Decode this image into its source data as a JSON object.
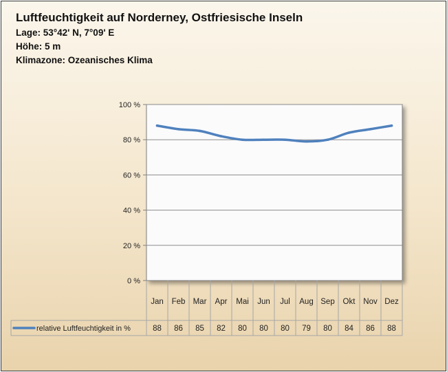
{
  "header": {
    "title": "Luftfeuchtigkeit auf Norderney, Ostfriesische Inseln",
    "location": "Lage: 53°42' N, 7°09' E",
    "altitude": "Höhe: 5 m",
    "climate_zone": "Klimazone: Ozeanisches Klima"
  },
  "chart_data": {
    "type": "line",
    "title": "",
    "xlabel": "",
    "ylabel": "",
    "categories": [
      "Jan",
      "Feb",
      "Mar",
      "Apr",
      "Mai",
      "Jun",
      "Jul",
      "Aug",
      "Sep",
      "Okt",
      "Nov",
      "Dez"
    ],
    "series": [
      {
        "name": "relative Luftfeuchtigkeit in %",
        "values": [
          88,
          86,
          85,
          82,
          80,
          80,
          80,
          79,
          80,
          84,
          86,
          88
        ],
        "color": "#4f81bd"
      }
    ],
    "ylim": [
      0,
      100
    ],
    "yticks": [
      0,
      20,
      40,
      60,
      80,
      100
    ],
    "ytick_labels": [
      "0 %",
      "20 %",
      "40 %",
      "60 %",
      "80 %",
      "100 %"
    ],
    "grid": true,
    "legend": "data-table-below",
    "data_table": true
  }
}
